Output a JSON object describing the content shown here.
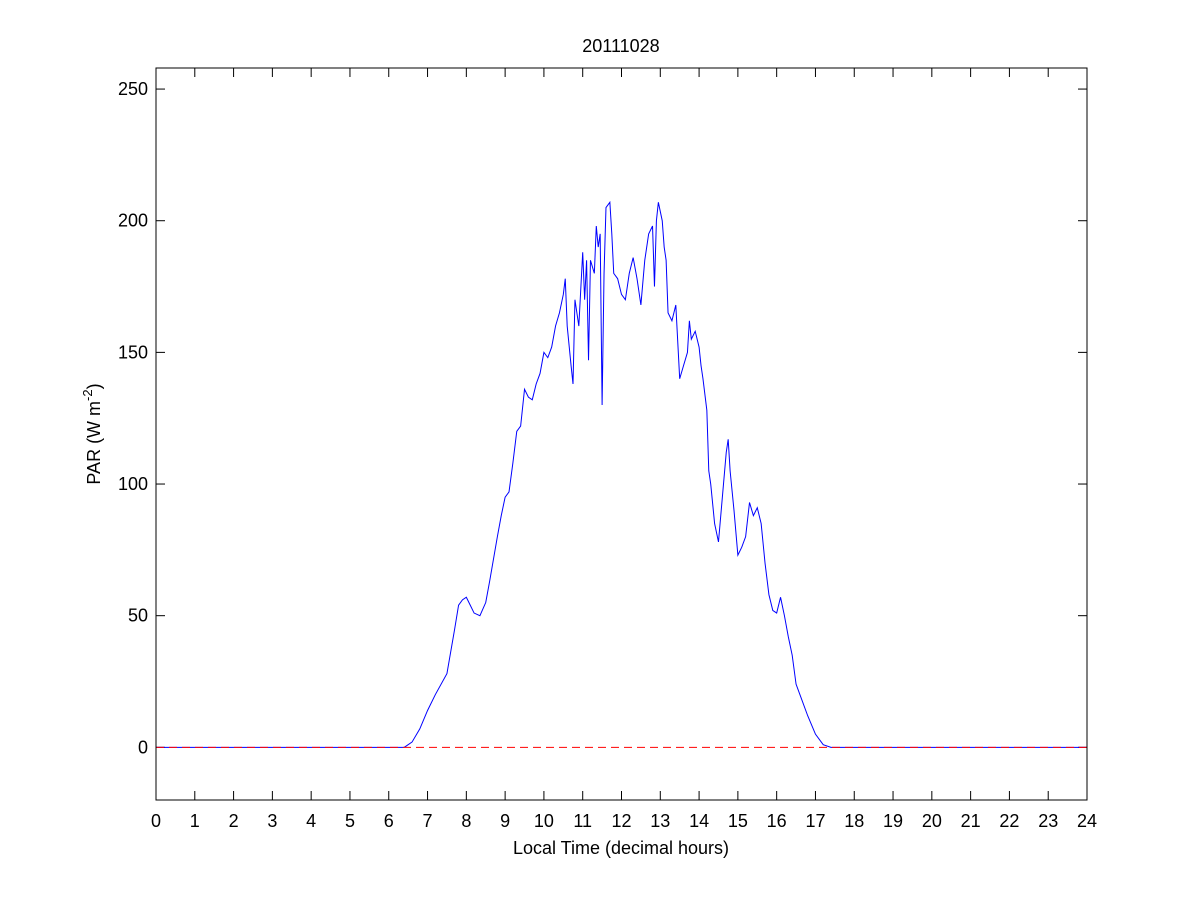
{
  "chart_data": {
    "type": "line",
    "title": "20111028",
    "xlabel": "Local Time (decimal hours)",
    "ylabel": {
      "text": "PAR (W m",
      "superscript": "-2",
      "suffix": ")"
    },
    "xlim": [
      0,
      24
    ],
    "ylim": [
      -20,
      258
    ],
    "xticks": [
      0,
      1,
      2,
      3,
      4,
      5,
      6,
      7,
      8,
      9,
      10,
      11,
      12,
      13,
      14,
      15,
      16,
      17,
      18,
      19,
      20,
      21,
      22,
      23,
      24
    ],
    "yticks": [
      0,
      50,
      100,
      150,
      200,
      250
    ],
    "series": [
      {
        "color": "#0000ff",
        "dash": false,
        "x": [
          0,
          6,
          6.4,
          6.6,
          6.8,
          7,
          7.2,
          7.5,
          7.7,
          7.8,
          7.9,
          8,
          8.1,
          8.2,
          8.35,
          8.5,
          8.6,
          8.8,
          8.9,
          9,
          9.1,
          9.2,
          9.3,
          9.4,
          9.5,
          9.6,
          9.7,
          9.8,
          9.9,
          10,
          10.1,
          10.2,
          10.3,
          10.4,
          10.5,
          10.55,
          10.6,
          10.7,
          10.75,
          10.8,
          10.9,
          11,
          11.05,
          11.1,
          11.15,
          11.2,
          11.3,
          11.35,
          11.4,
          11.45,
          11.5,
          11.55,
          11.6,
          11.7,
          11.75,
          11.8,
          11.9,
          12,
          12.1,
          12.2,
          12.3,
          12.4,
          12.5,
          12.6,
          12.7,
          12.8,
          12.85,
          12.9,
          12.95,
          13.05,
          13.1,
          13.15,
          13.2,
          13.3,
          13.4,
          13.5,
          13.6,
          13.7,
          13.75,
          13.8,
          13.9,
          14,
          14.05,
          14.1,
          14.2,
          14.25,
          14.3,
          14.4,
          14.5,
          14.6,
          14.7,
          14.75,
          14.8,
          14.9,
          15,
          15.1,
          15.2,
          15.3,
          15.4,
          15.5,
          15.6,
          15.7,
          15.8,
          15.9,
          16,
          16.1,
          16.2,
          16.3,
          16.4,
          16.5,
          16.6,
          16.8,
          17,
          17.2,
          17.4,
          18,
          24
        ],
        "values": [
          0,
          0,
          0,
          2,
          7,
          14,
          20,
          28,
          45,
          54,
          56,
          57,
          54,
          51,
          50,
          55,
          63,
          80,
          88,
          95,
          97,
          108,
          120,
          122,
          136,
          133,
          132,
          138,
          142,
          150,
          148,
          152,
          160,
          165,
          172,
          178,
          160,
          145,
          138,
          170,
          160,
          188,
          170,
          185,
          147,
          185,
          180,
          198,
          190,
          195,
          130,
          180,
          205,
          207,
          195,
          180,
          178,
          172,
          170,
          180,
          186,
          178,
          168,
          185,
          195,
          198,
          175,
          200,
          207,
          200,
          190,
          185,
          165,
          162,
          168,
          140,
          145,
          150,
          162,
          155,
          158,
          152,
          145,
          140,
          128,
          105,
          100,
          85,
          78,
          95,
          112,
          117,
          105,
          90,
          73,
          76,
          80,
          93,
          88,
          91,
          85,
          70,
          58,
          52,
          51,
          57,
          50,
          42,
          35,
          24,
          20,
          12,
          5,
          1,
          0,
          0,
          0
        ]
      },
      {
        "color": "#ff0000",
        "dash": true,
        "x": [
          0,
          24
        ],
        "values": [
          0,
          0
        ]
      }
    ]
  }
}
